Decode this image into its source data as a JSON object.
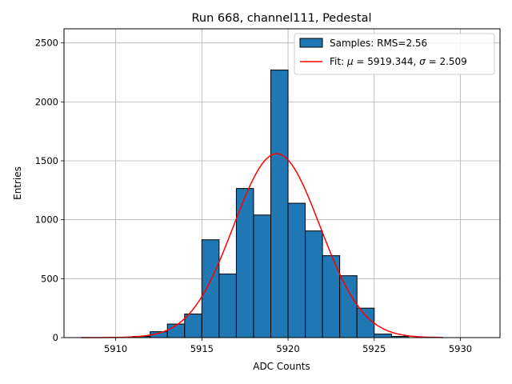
{
  "chart_data": {
    "type": "histogram",
    "title": "Run 668, channel111, Pedestal",
    "xlabel": "ADC Counts",
    "ylabel": "Entries",
    "xlim": [
      5907,
      5932.3
    ],
    "ylim": [
      0,
      2620
    ],
    "xticks": [
      5910,
      5915,
      5920,
      5925,
      5930
    ],
    "yticks": [
      0,
      500,
      1000,
      1500,
      2000,
      2500
    ],
    "grid": true,
    "legend_position": "top-right",
    "bin_edges": [
      5910,
      5911,
      5912,
      5913,
      5914,
      5915,
      5916,
      5917,
      5918,
      5919,
      5920,
      5921,
      5922,
      5923,
      5924,
      5925,
      5926,
      5927,
      5928,
      5929,
      5930,
      5931
    ],
    "counts": [
      0,
      10,
      50,
      115,
      200,
      830,
      540,
      1265,
      1040,
      2270,
      1140,
      905,
      695,
      525,
      250,
      30,
      10,
      0,
      0,
      0,
      0
    ],
    "fit": {
      "mu": 5919.344,
      "sigma": 2.509,
      "amplitude": 1560,
      "x_range": [
        5908,
        5929
      ]
    },
    "series": [
      {
        "name": "Samples: RMS=2.56",
        "color": "#1f77b4",
        "edge_color": "#000000"
      },
      {
        "name_prefix": "Fit: ",
        "mu_symbol": "μ",
        "mu_text": " = 5919.344, ",
        "sigma_symbol": "σ",
        "sigma_text": " = 2.509",
        "color": "#ff0000"
      }
    ]
  }
}
